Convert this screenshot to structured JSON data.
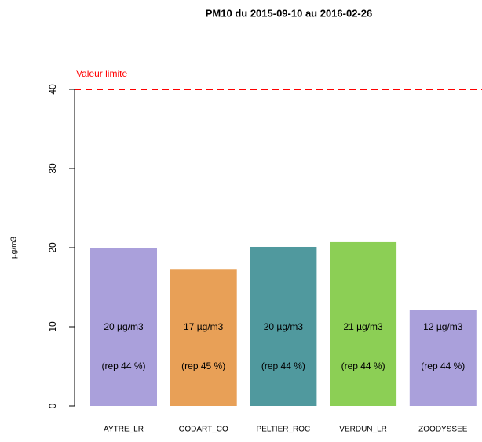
{
  "chart_data": {
    "type": "bar",
    "title": "PM10 du 2015-09-10 au 2016-02-26",
    "y_label": "µg/m3",
    "categories": [
      "AYTRE_LR",
      "GODART_CO",
      "PELTIER_ROC",
      "VERDUN_LR",
      "ZOODYSSEE"
    ],
    "values": [
      19.9,
      17.3,
      20.1,
      20.7,
      12.1
    ],
    "value_labels": [
      "20 µg/m3",
      "17 µg/m3",
      "20 µg/m3",
      "21 µg/m3",
      "12 µg/m3"
    ],
    "rep_labels": [
      "(rep  44 %)",
      "(rep  45 %)",
      "(rep  44 %)",
      "(rep  44 %)",
      "(rep  44 %)"
    ],
    "colors": [
      "#aaa0db",
      "#e8a057",
      "#50999e",
      "#8ccf55",
      "#aaa0db"
    ],
    "ylim": [
      0,
      40
    ],
    "yticks": [
      0,
      10,
      20,
      30,
      40
    ],
    "limit": 40,
    "limit_label": "Valeur limite",
    "limit_color": "#ff0000"
  }
}
